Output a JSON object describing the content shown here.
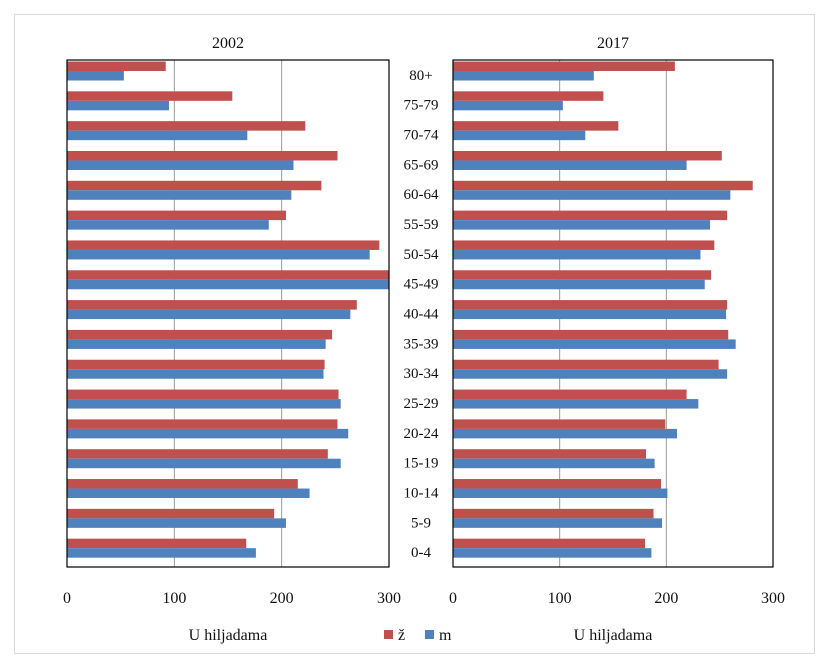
{
  "chart_data": {
    "type": "bar",
    "orientation": "horizontal",
    "categories": [
      "80+",
      "75-79",
      "70-74",
      "65-69",
      "60-64",
      "55-59",
      "50-54",
      "45-49",
      "40-44",
      "35-39",
      "30-34",
      "25-29",
      "20-24",
      "15-19",
      "10-14",
      "5-9",
      "0-4"
    ],
    "xlim": [
      0,
      300
    ],
    "xticks": [
      "0",
      "100",
      "200",
      "300"
    ],
    "xlabel": "U hiljadama",
    "grid": "vertical",
    "legend": {
      "placement": "bottom-center",
      "entries": [
        {
          "label": "ž",
          "color": "#c0504d"
        },
        {
          "label": "m",
          "color": "#4f81bd"
        }
      ]
    },
    "panels": [
      {
        "title": "2002",
        "series": [
          {
            "name": "ž",
            "color": "#c0504d",
            "values": [
              92,
              154,
              222,
              252,
              237,
              204,
              291,
              301,
              270,
              247,
              240,
              253,
              252,
              243,
              215,
              193,
              167
            ]
          },
          {
            "name": "m",
            "color": "#4f81bd",
            "values": [
              53,
              95,
              168,
              211,
              209,
              188,
              282,
              302,
              264,
              241,
              239,
              255,
              262,
              255,
              226,
              204,
              176
            ]
          }
        ]
      },
      {
        "title": "2017",
        "series": [
          {
            "name": "ž",
            "color": "#c0504d",
            "values": [
              208,
              141,
              155,
              252,
              281,
              257,
              245,
              242,
              257,
              258,
              249,
              219,
              199,
              181,
              195,
              188,
              180
            ]
          },
          {
            "name": "m",
            "color": "#4f81bd",
            "values": [
              132,
              103,
              124,
              219,
              260,
              241,
              232,
              236,
              256,
              265,
              257,
              230,
              210,
              189,
              201,
              196,
              186
            ]
          }
        ]
      }
    ]
  }
}
